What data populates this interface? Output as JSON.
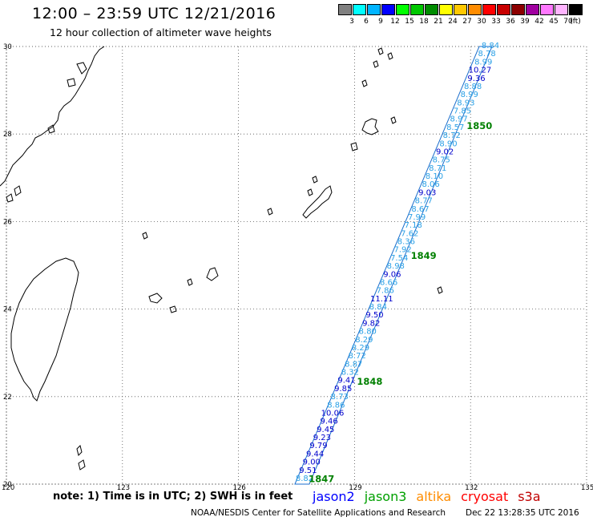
{
  "header": {
    "title": "12:00 – 23:59 UTC 12/21/2016",
    "subtitle": "12 hour collection of altimeter wave heights"
  },
  "legend": {
    "unit": "(ft)",
    "swatches": [
      {
        "color": "#808080",
        "label": "3"
      },
      {
        "color": "#00ffff",
        "label": "6"
      },
      {
        "color": "#00b4ff",
        "label": "9"
      },
      {
        "color": "#0000ff",
        "label": "12"
      },
      {
        "color": "#00ff00",
        "label": "15"
      },
      {
        "color": "#00c800",
        "label": "18"
      },
      {
        "color": "#008c00",
        "label": "21"
      },
      {
        "color": "#ffff00",
        "label": "24"
      },
      {
        "color": "#ffc800",
        "label": "27"
      },
      {
        "color": "#ff8c00",
        "label": "30"
      },
      {
        "color": "#ff0000",
        "label": "33"
      },
      {
        "color": "#c80000",
        "label": "36"
      },
      {
        "color": "#8c0000",
        "label": "39"
      },
      {
        "color": "#a000a0",
        "label": "42"
      },
      {
        "color": "#ff78ff",
        "label": "45"
      },
      {
        "color": "#ffb4ff",
        "label": "70"
      },
      {
        "color": "#000000",
        "label": ""
      }
    ]
  },
  "axes": {
    "lon_ticks": [
      "120",
      "123",
      "126",
      "129",
      "132",
      "135"
    ],
    "lat_ticks": [
      "30",
      "28",
      "26",
      "24",
      "22",
      "20"
    ]
  },
  "track": {
    "readings": [
      {
        "v": "8.84",
        "c": "light"
      },
      {
        "v": "8.78",
        "c": "light"
      },
      {
        "v": "8.99",
        "c": "light"
      },
      {
        "v": "10.27",
        "c": "dark"
      },
      {
        "v": "9.36",
        "c": "dark"
      },
      {
        "v": "8.88",
        "c": "light"
      },
      {
        "v": "8.99",
        "c": "light"
      },
      {
        "v": "8.93",
        "c": "light"
      },
      {
        "v": "7.85",
        "c": "light"
      },
      {
        "v": "8.97",
        "c": "light"
      },
      {
        "v": "8.57",
        "c": "light"
      },
      {
        "v": "8.72",
        "c": "light"
      },
      {
        "v": "8.90",
        "c": "light"
      },
      {
        "v": "9.02",
        "c": "dark"
      },
      {
        "v": "8.75",
        "c": "light"
      },
      {
        "v": "8.71",
        "c": "light"
      },
      {
        "v": "8.10",
        "c": "light"
      },
      {
        "v": "8.06",
        "c": "light"
      },
      {
        "v": "9.03",
        "c": "dark"
      },
      {
        "v": "8.77",
        "c": "light"
      },
      {
        "v": "8.67",
        "c": "light"
      },
      {
        "v": "7.99",
        "c": "light"
      },
      {
        "v": "7.18",
        "c": "light"
      },
      {
        "v": "7.62",
        "c": "light"
      },
      {
        "v": "8.36",
        "c": "light"
      },
      {
        "v": "7.92",
        "c": "light"
      },
      {
        "v": "7.54",
        "c": "light"
      },
      {
        "v": "8.98",
        "c": "light"
      },
      {
        "v": "9.06",
        "c": "dark"
      },
      {
        "v": "8.66",
        "c": "light"
      },
      {
        "v": "7.86",
        "c": "light"
      },
      {
        "v": "11.11",
        "c": "dark"
      },
      {
        "v": "8.84",
        "c": "light"
      },
      {
        "v": "9.50",
        "c": "dark"
      },
      {
        "v": "9.82",
        "c": "dark"
      },
      {
        "v": "8.80",
        "c": "light"
      },
      {
        "v": "8.29",
        "c": "light"
      },
      {
        "v": "8.29",
        "c": "light"
      },
      {
        "v": "8.72",
        "c": "light"
      },
      {
        "v": "8.87",
        "c": "light"
      },
      {
        "v": "8.32",
        "c": "light"
      },
      {
        "v": "9.41",
        "c": "dark"
      },
      {
        "v": "9.85",
        "c": "dark"
      },
      {
        "v": "8.73",
        "c": "light"
      },
      {
        "v": "8.86",
        "c": "light"
      },
      {
        "v": "10.06",
        "c": "dark"
      },
      {
        "v": "9.46",
        "c": "dark"
      },
      {
        "v": "9.45",
        "c": "dark"
      },
      {
        "v": "9.23",
        "c": "dark"
      },
      {
        "v": "9.79",
        "c": "dark"
      },
      {
        "v": "9.44",
        "c": "dark"
      },
      {
        "v": "9.00",
        "c": "dark"
      },
      {
        "v": "9.51",
        "c": "dark"
      },
      {
        "v": "8.82",
        "c": "light"
      }
    ],
    "colors": {
      "light": "#2aa0e6",
      "dark": "#0000cc",
      "time": "#008000"
    },
    "time_labels": [
      "1850",
      "1849",
      "1848",
      "1847"
    ]
  },
  "bottom": {
    "note": "note: 1) Time is in UTC; 2) SWH is in feet",
    "satellites": [
      {
        "name": "jason2",
        "color": "#0000ff"
      },
      {
        "name": "jason3",
        "color": "#00a000"
      },
      {
        "name": "altika",
        "color": "#ff8c00"
      },
      {
        "name": "cryosat",
        "color": "#ff0000"
      },
      {
        "name": "s3a",
        "color": "#c00000"
      }
    ],
    "footer_left": "NOAA/NESDIS Center for Satellite Applications and Research",
    "footer_right": "Dec 22 13:28:35 UTC 2016"
  }
}
